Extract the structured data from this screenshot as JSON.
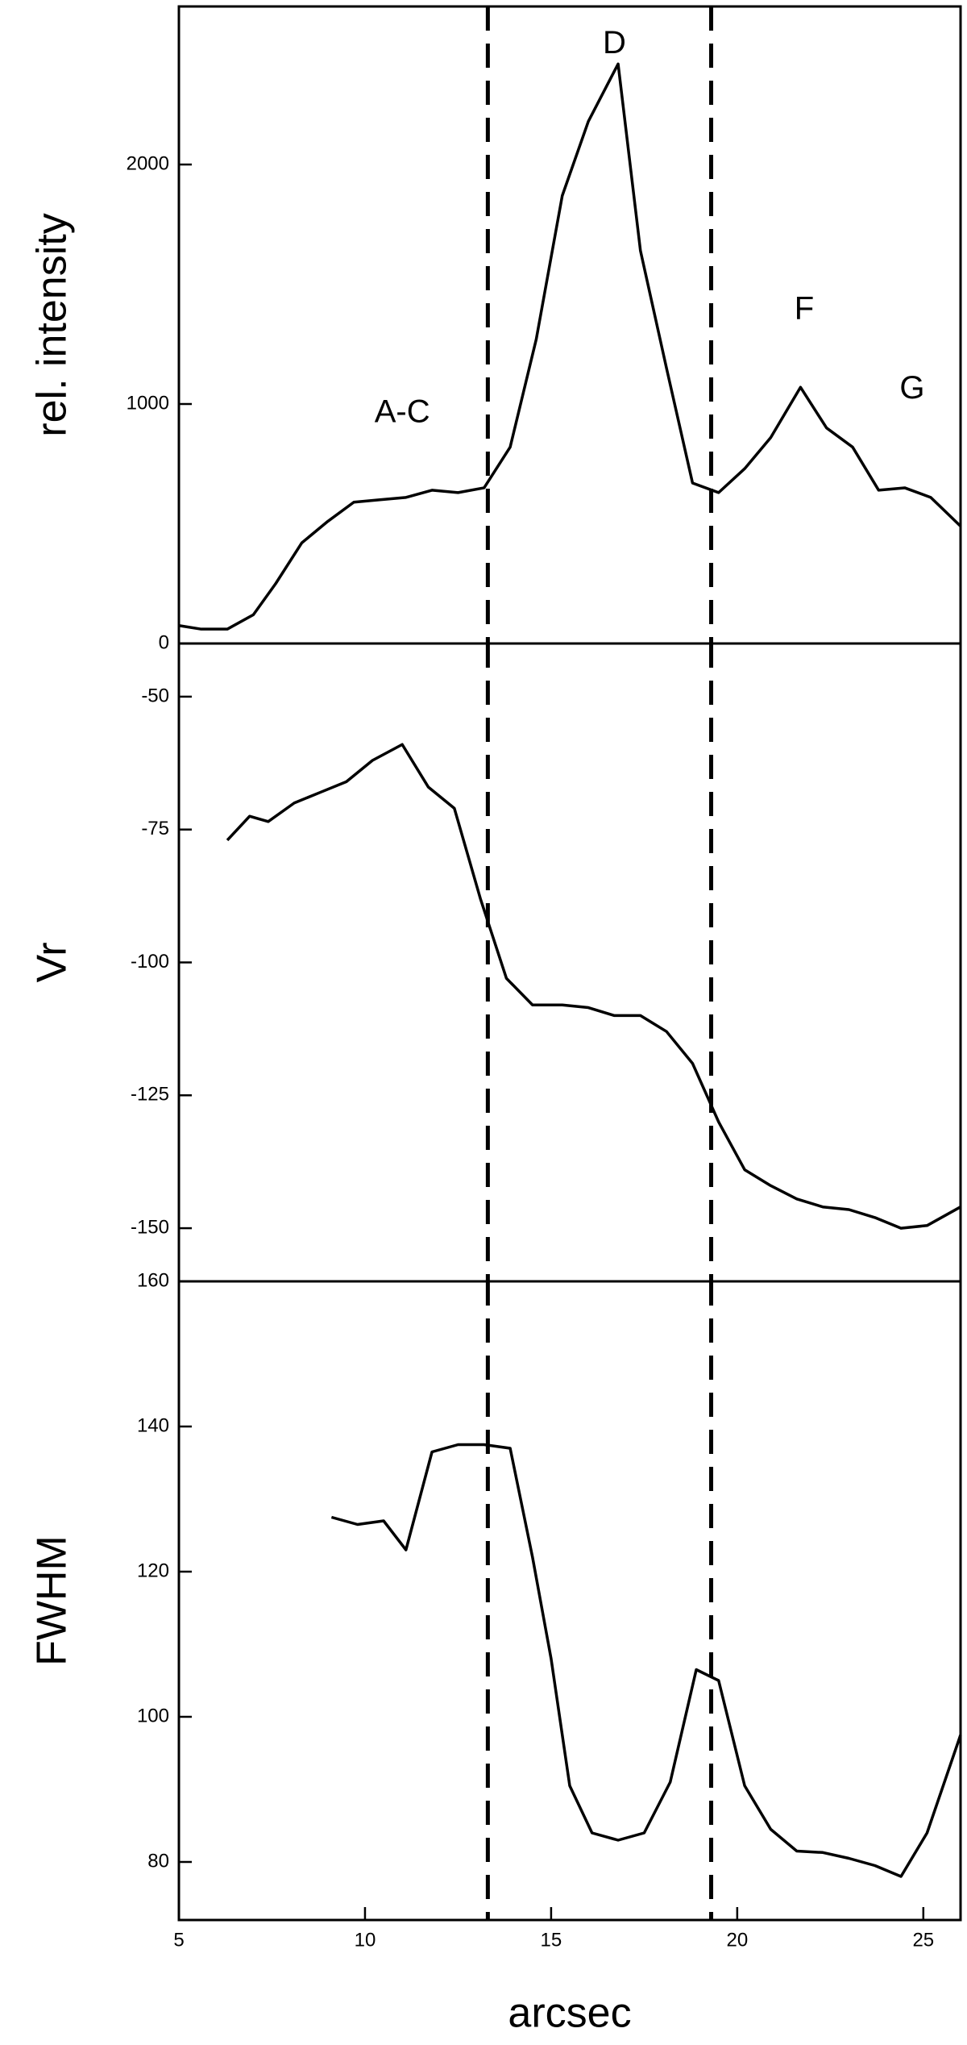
{
  "chart_data": [
    {
      "type": "line",
      "ylabel": "rel. intensity",
      "x": [
        5,
        5.6,
        6.3,
        7,
        7.6,
        8.3,
        9,
        9.7,
        10.4,
        11.1,
        11.8,
        12.5,
        13.2,
        13.9,
        14.6,
        15.3,
        16,
        16.8,
        17.4,
        18.1,
        18.8,
        19.5,
        20.2,
        20.9,
        21.7,
        22.4,
        23.1,
        23.8,
        24.5,
        25.2,
        26
      ],
      "values": [
        75,
        60,
        60,
        120,
        250,
        420,
        510,
        590,
        600,
        610,
        640,
        630,
        650,
        820,
        1270,
        1870,
        2180,
        2420,
        1640,
        1150,
        670,
        630,
        730,
        860,
        1070,
        900,
        820,
        640,
        650,
        610,
        490
      ],
      "color": "#000000",
      "xlim": [
        5,
        26
      ],
      "ylim": [
        0,
        2660
      ],
      "yticks": [
        0,
        1000,
        2000
      ],
      "vlines": [
        13.3,
        19.3
      ],
      "annotations": [
        {
          "text": "A-C",
          "x": 11,
          "y": 960
        },
        {
          "text": "D",
          "x": 16.7,
          "y": 2500
        },
        {
          "text": "F",
          "x": 21.8,
          "y": 1390
        },
        {
          "text": "G",
          "x": 24.7,
          "y": 1060
        }
      ]
    },
    {
      "type": "line",
      "ylabel": "Vr",
      "x": [
        6.3,
        6.9,
        7.4,
        8.1,
        8.8,
        9.5,
        10.2,
        11,
        11.7,
        12.4,
        13.1,
        13.8,
        14.5,
        15.3,
        16,
        16.7,
        17.4,
        18.1,
        18.8,
        19.5,
        20.2,
        20.9,
        21.6,
        22.3,
        23,
        23.7,
        24.4,
        25.1,
        26
      ],
      "values": [
        -77,
        -72.5,
        -73.5,
        -70,
        -68,
        -66,
        -62,
        -59,
        -67,
        -71,
        -88,
        -103,
        -108,
        -108,
        -108.5,
        -110,
        -110,
        -113,
        -119,
        -130,
        -139,
        -142,
        -144.5,
        -146,
        -146.5,
        -148,
        -150,
        -149.5,
        -146
      ],
      "color": "#000000",
      "xlim": [
        5,
        26
      ],
      "ylim": [
        -160,
        -40
      ],
      "yticks": [
        -50,
        -75,
        -100,
        -125,
        -150
      ],
      "vlines": [
        13.3,
        19.3
      ]
    },
    {
      "type": "line",
      "ylabel": "FWHM",
      "xlabel": "arcsec",
      "x": [
        9.1,
        9.8,
        10.5,
        11.1,
        11.8,
        12.5,
        13.2,
        13.9,
        14.5,
        15,
        15.5,
        16.1,
        16.8,
        17.5,
        18.2,
        18.9,
        19.5,
        20.2,
        20.9,
        21.6,
        22.3,
        23,
        23.7,
        24.4,
        25.1,
        26
      ],
      "values": [
        127.5,
        126.5,
        127,
        123,
        136.5,
        137.5,
        137.5,
        137,
        122,
        108,
        90.5,
        84,
        83,
        84,
        91,
        106.5,
        105,
        90.5,
        84.5,
        81.5,
        81.3,
        80.5,
        79.5,
        78,
        84,
        97.5
      ],
      "color": "#000000",
      "xlim": [
        5,
        26
      ],
      "xticks": [
        5,
        10,
        15,
        20,
        25
      ],
      "ylim": [
        72,
        160
      ],
      "yticks": [
        80,
        100,
        120,
        140,
        160
      ],
      "vlines": [
        13.3,
        19.3
      ]
    }
  ]
}
